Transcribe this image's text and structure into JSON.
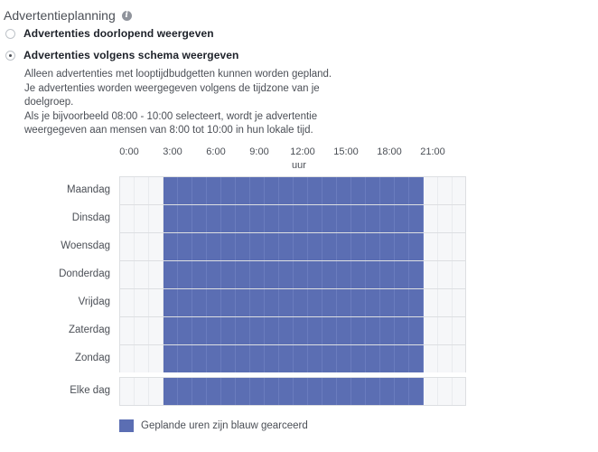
{
  "section": {
    "title": "Advertentieplanning",
    "info_icon": "info-icon"
  },
  "options": [
    {
      "label": "Advertenties doorlopend weergeven",
      "checked": false
    },
    {
      "label": "Advertenties volgens schema weergeven",
      "checked": true
    }
  ],
  "description": [
    "Alleen advertenties met looptijdbudgetten kunnen worden gepland.",
    "Je advertenties worden weergegeven volgens de tijdzone van je",
    "doelgroep.",
    "Als je bijvoorbeeld 08:00 - 10:00 selecteert, wordt je advertentie",
    "weergegeven aan mensen van 8:00 tot 10:00 in hun lokale tijd."
  ],
  "schedule": {
    "hour_labels": [
      "0:00",
      "3:00",
      "6:00",
      "9:00",
      "12:00",
      "15:00",
      "18:00",
      "21:00"
    ],
    "axis_unit": "uur",
    "days": [
      "Maandag",
      "Dinsdag",
      "Woensdag",
      "Donderdag",
      "Vrijdag",
      "Zaterdag",
      "Zondag"
    ],
    "every_day_label": "Elke dag",
    "hours_per_day": 24,
    "scheduled_from_hour": 3,
    "scheduled_to_hour": 21,
    "scheduled_color": "#5b6eb3"
  },
  "legend": {
    "label": "Geplande uren zijn blauw gearceerd"
  }
}
